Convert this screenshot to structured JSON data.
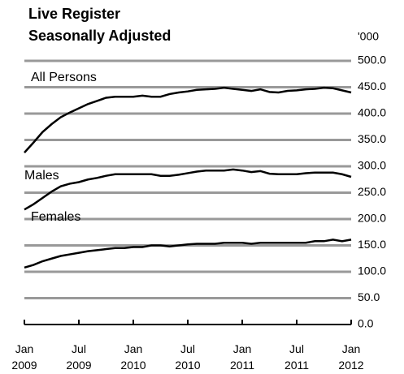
{
  "chart_data": {
    "type": "line",
    "title": "Live Register",
    "subtitle": "Seasonally Adjusted",
    "unit_label": "'000",
    "categories": [
      "Jan 2009",
      null,
      null,
      null,
      null,
      null,
      "Jul 2009",
      null,
      null,
      null,
      null,
      null,
      "Jan 2010",
      null,
      null,
      null,
      null,
      null,
      "Jul 2010",
      null,
      null,
      null,
      null,
      null,
      "Jan 2011",
      null,
      null,
      null,
      null,
      null,
      "Jul 2011",
      null,
      null,
      null,
      null,
      null,
      "Jan 2012"
    ],
    "series": [
      {
        "name": "All Persons",
        "color": "#000000",
        "values": [
          326,
          345,
          365,
          380,
          393,
          402,
          410,
          418,
          424,
          430,
          432,
          432,
          432,
          434,
          432,
          432,
          437,
          440,
          442,
          445,
          446,
          447,
          449,
          447,
          445,
          443,
          446,
          441,
          440,
          443,
          444,
          446,
          447,
          449,
          448,
          444,
          440
        ]
      },
      {
        "name": "Males",
        "color": "#000000",
        "values": [
          218,
          228,
          240,
          252,
          262,
          267,
          270,
          275,
          278,
          282,
          285,
          285,
          285,
          285,
          285,
          282,
          282,
          284,
          287,
          290,
          292,
          292,
          292,
          294,
          292,
          289,
          291,
          286,
          285,
          285,
          285,
          287,
          288,
          288,
          288,
          285,
          280
        ]
      },
      {
        "name": "Females",
        "color": "#000000",
        "values": [
          108,
          113,
          120,
          125,
          130,
          133,
          136,
          139,
          141,
          143,
          145,
          145,
          147,
          147,
          150,
          150,
          148,
          150,
          152,
          153,
          153,
          153,
          155,
          155,
          155,
          153,
          155,
          155,
          155,
          155,
          155,
          155,
          158,
          158,
          161,
          158,
          161
        ]
      }
    ],
    "ylim": [
      0,
      500
    ],
    "yticks": [
      {
        "value": 0,
        "label": "0.0"
      },
      {
        "value": 50,
        "label": "50.0"
      },
      {
        "value": 100,
        "label": "100.0"
      },
      {
        "value": 150,
        "label": "150.0"
      },
      {
        "value": 200,
        "label": "200.0"
      },
      {
        "value": 250,
        "label": "250.0"
      },
      {
        "value": 300,
        "label": "300.0"
      },
      {
        "value": 350,
        "label": "350.0"
      },
      {
        "value": 400,
        "label": "400.0"
      },
      {
        "value": 450,
        "label": "450.0"
      },
      {
        "value": 500,
        "label": "500.0"
      }
    ],
    "grid": true
  }
}
